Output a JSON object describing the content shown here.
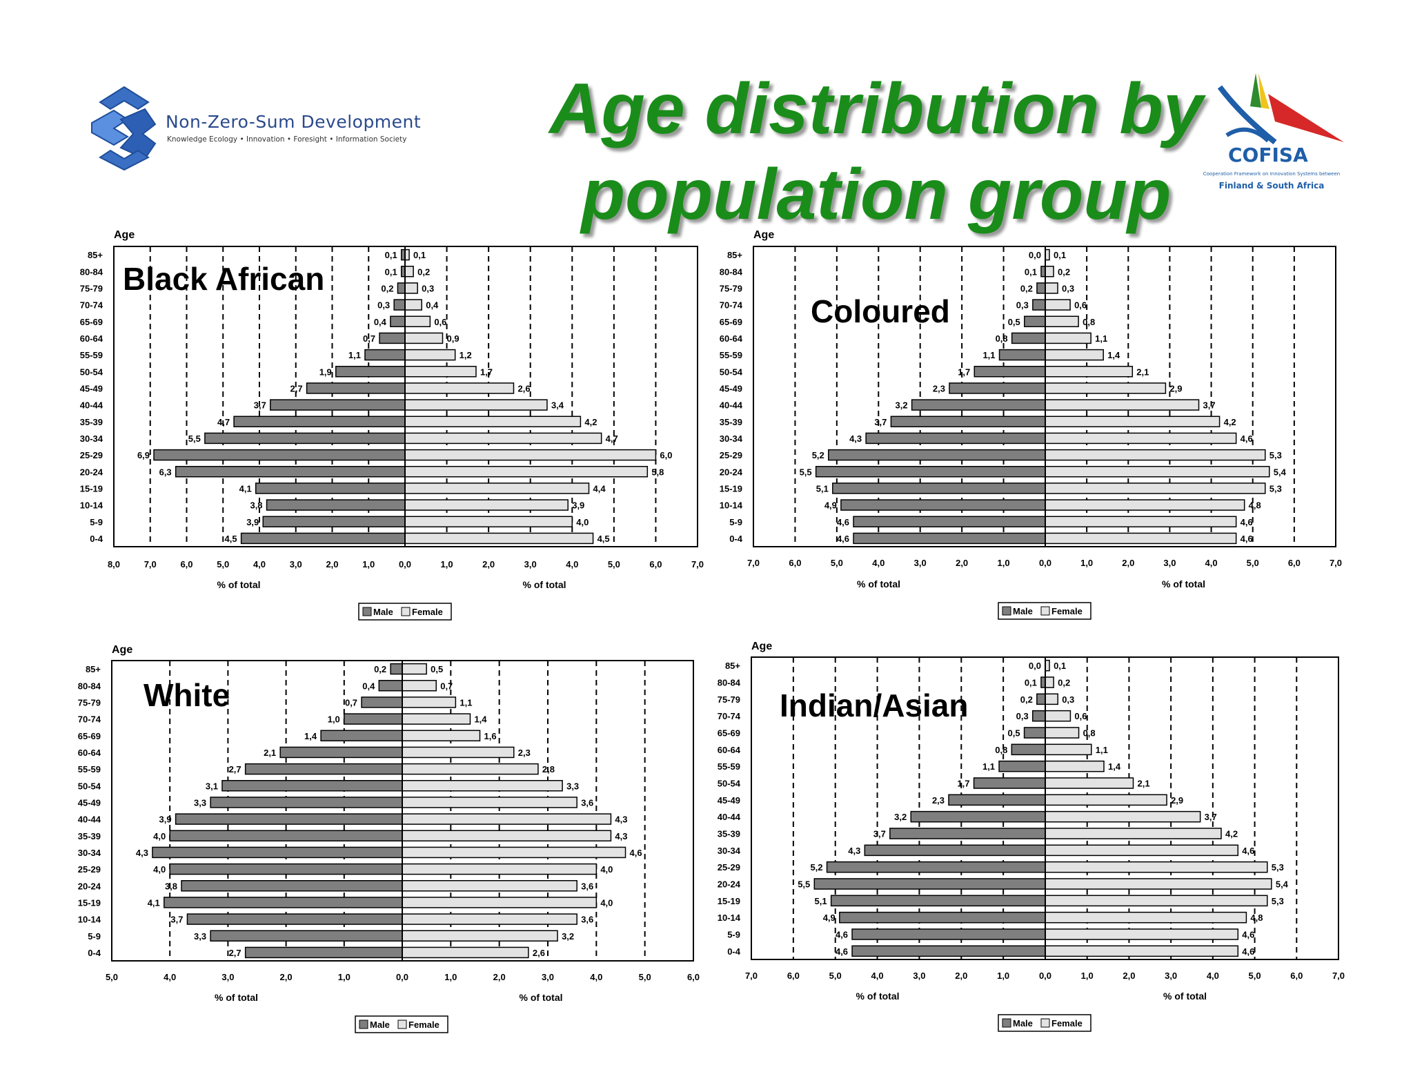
{
  "logos": {
    "nzs": {
      "name": "Non-Zero-Sum Development",
      "tagline": "Knowledge Ecology • Innovation • Foresight • Information Society"
    },
    "cofisa": {
      "name": "COFISA",
      "tagline": "Cooperation Framework on Innovation Systems between",
      "subtitle": "Finland & South Africa"
    }
  },
  "title": "Age distribution by population group",
  "colors": {
    "title": "#1a8c1a",
    "male": "#7f7f7f",
    "female": "#e3e3e3"
  },
  "chart_data": [
    {
      "type": "bar",
      "title": "Black African",
      "ylabel": "Age",
      "xlabel_left": "% of total",
      "xlabel_right": "% of total",
      "categories": [
        "85+",
        "80-84",
        "75-79",
        "70-74",
        "65-69",
        "60-64",
        "55-59",
        "50-54",
        "45-49",
        "40-44",
        "35-39",
        "30-34",
        "25-29",
        "20-24",
        "15-19",
        "10-14",
        "5-9",
        "0-4"
      ],
      "male_range": [
        8.0,
        0.0
      ],
      "female_range": [
        0.0,
        7.0
      ],
      "male_ticks": [
        "8,0",
        "7,0",
        "6,0",
        "5,0",
        "4,0",
        "3,0",
        "2,0",
        "1,0",
        "0,0"
      ],
      "female_ticks": [
        "0,0",
        "1,0",
        "2,0",
        "3,0",
        "4,0",
        "5,0",
        "6,0",
        "7,0"
      ],
      "series": [
        {
          "name": "Male",
          "values": [
            0.1,
            0.1,
            0.2,
            0.3,
            0.4,
            0.7,
            1.1,
            1.9,
            2.7,
            3.7,
            4.7,
            5.5,
            6.9,
            6.3,
            4.1,
            3.8,
            3.9,
            4.5
          ],
          "labels": [
            "0,1",
            "0,1",
            "0,2",
            "0,3",
            "0,4",
            "0,7",
            "1,1",
            "1,9",
            "2,7",
            "3,7",
            "4,7",
            "5,5",
            "6,9",
            "6,3",
            "4,1",
            "3,8",
            "3,9",
            "4,5"
          ]
        },
        {
          "name": "Female",
          "values": [
            0.1,
            0.2,
            0.3,
            0.4,
            0.6,
            0.9,
            1.2,
            1.7,
            2.6,
            3.4,
            4.2,
            4.7,
            6.0,
            5.8,
            4.4,
            3.9,
            4.0,
            4.5
          ],
          "labels": [
            "0,1",
            "0,2",
            "0,3",
            "0,4",
            "0,6",
            "0,9",
            "1,2",
            "1,7",
            "2,6",
            "3,4",
            "4,2",
            "4,7",
            "6,0",
            "5,8",
            "4,4",
            "3,9",
            "4,0",
            "4,5"
          ]
        }
      ],
      "legend": [
        "Male",
        "Female"
      ]
    },
    {
      "type": "bar",
      "title": "Coloured",
      "ylabel": "Age",
      "xlabel_left": "% of total",
      "xlabel_right": "% of total",
      "categories": [
        "85+",
        "80-84",
        "75-79",
        "70-74",
        "65-69",
        "60-64",
        "55-59",
        "50-54",
        "45-49",
        "40-44",
        "35-39",
        "30-34",
        "25-29",
        "20-24",
        "15-19",
        "10-14",
        "5-9",
        "0-4"
      ],
      "male_range": [
        7.0,
        0.0
      ],
      "female_range": [
        0.0,
        7.0
      ],
      "male_ticks": [
        "7,0",
        "6,0",
        "5,0",
        "4,0",
        "3,0",
        "2,0",
        "1,0",
        "0,0"
      ],
      "female_ticks": [
        "0,0",
        "1,0",
        "2,0",
        "3,0",
        "4,0",
        "5,0",
        "6,0",
        "7,0"
      ],
      "series": [
        {
          "name": "Male",
          "values": [
            0.0,
            0.1,
            0.2,
            0.3,
            0.5,
            0.8,
            1.1,
            1.7,
            2.3,
            3.2,
            3.7,
            4.3,
            5.2,
            5.5,
            5.1,
            4.9,
            4.6,
            4.6
          ],
          "labels": [
            "0,0",
            "0,1",
            "0,2",
            "0,3",
            "0,5",
            "0,8",
            "1,1",
            "1,7",
            "2,3",
            "3,2",
            "3,7",
            "4,3",
            "5,2",
            "5,5",
            "5,1",
            "4,9",
            "4,6",
            "4,6"
          ]
        },
        {
          "name": "Female",
          "values": [
            0.1,
            0.2,
            0.3,
            0.6,
            0.8,
            1.1,
            1.4,
            2.1,
            2.9,
            3.7,
            4.2,
            4.6,
            5.3,
            5.4,
            5.3,
            4.8,
            4.6,
            4.6
          ],
          "labels": [
            "0,1",
            "0,2",
            "0,3",
            "0,6",
            "0,8",
            "1,1",
            "1,4",
            "2,1",
            "2,9",
            "3,7",
            "4,2",
            "4,6",
            "5,3",
            "5,4",
            "5,3",
            "4,8",
            "4,6",
            "4,6"
          ]
        }
      ],
      "legend": [
        "Male",
        "Female"
      ]
    },
    {
      "type": "bar",
      "title": "White",
      "ylabel": "Age",
      "xlabel_left": "% of total",
      "xlabel_right": "% of total",
      "categories": [
        "85+",
        "80-84",
        "75-79",
        "70-74",
        "65-69",
        "60-64",
        "55-59",
        "50-54",
        "45-49",
        "40-44",
        "35-39",
        "30-34",
        "25-29",
        "20-24",
        "15-19",
        "10-14",
        "5-9",
        "0-4"
      ],
      "male_range": [
        5.0,
        0.0
      ],
      "female_range": [
        0.0,
        6.0
      ],
      "male_ticks": [
        "5,0",
        "4,0",
        "3,0",
        "2,0",
        "1,0",
        "0,0"
      ],
      "female_ticks": [
        "0,0",
        "1,0",
        "2,0",
        "3,0",
        "4,0",
        "5,0",
        "6,0"
      ],
      "series": [
        {
          "name": "Male",
          "values": [
            0.2,
            0.4,
            0.7,
            1.0,
            1.4,
            2.1,
            2.7,
            3.1,
            3.3,
            3.9,
            4.0,
            4.3,
            4.0,
            3.8,
            4.1,
            3.7,
            3.3,
            2.7
          ],
          "labels": [
            "0,2",
            "0,4",
            "0,7",
            "1,0",
            "1,4",
            "2,1",
            "2,7",
            "3,1",
            "3,3",
            "3,9",
            "4,0",
            "4,3",
            "4,0",
            "3,8",
            "4,1",
            "3,7",
            "3,3",
            "2,7"
          ]
        },
        {
          "name": "Female",
          "values": [
            0.5,
            0.7,
            1.1,
            1.4,
            1.6,
            2.3,
            2.8,
            3.3,
            3.6,
            4.3,
            4.3,
            4.6,
            4.0,
            3.6,
            4.0,
            3.6,
            3.2,
            2.6
          ],
          "labels": [
            "0,5",
            "0,7",
            "1,1",
            "1,4",
            "1,6",
            "2,3",
            "2,8",
            "3,3",
            "3,6",
            "4,3",
            "4,3",
            "4,6",
            "4,0",
            "3,6",
            "4,0",
            "3,6",
            "3,2",
            "2,6"
          ]
        }
      ],
      "legend": [
        "Male",
        "Female"
      ]
    },
    {
      "type": "bar",
      "title": "Indian/Asian",
      "ylabel": "Age",
      "xlabel_left": "% of total",
      "xlabel_right": "% of total",
      "categories": [
        "85+",
        "80-84",
        "75-79",
        "70-74",
        "65-69",
        "60-64",
        "55-59",
        "50-54",
        "45-49",
        "40-44",
        "35-39",
        "30-34",
        "25-29",
        "20-24",
        "15-19",
        "10-14",
        "5-9",
        "0-4"
      ],
      "male_range": [
        7.0,
        0.0
      ],
      "female_range": [
        0.0,
        7.0
      ],
      "male_ticks": [
        "7,0",
        "6,0",
        "5,0",
        "4,0",
        "3,0",
        "2,0",
        "1,0",
        "0,0"
      ],
      "female_ticks": [
        "0,0",
        "1,0",
        "2,0",
        "3,0",
        "4,0",
        "5,0",
        "6,0",
        "7,0"
      ],
      "series": [
        {
          "name": "Male",
          "values": [
            0.0,
            0.1,
            0.2,
            0.3,
            0.5,
            0.8,
            1.1,
            1.7,
            2.3,
            3.2,
            3.7,
            4.3,
            5.2,
            5.5,
            5.1,
            4.9,
            4.6,
            4.6
          ],
          "labels": [
            "0,0",
            "0,1",
            "0,2",
            "0,3",
            "0,5",
            "0,8",
            "1,1",
            "1,7",
            "2,3",
            "3,2",
            "3,7",
            "4,3",
            "5,2",
            "5,5",
            "5,1",
            "4,9",
            "4,6",
            "4,6"
          ]
        },
        {
          "name": "Female",
          "values": [
            0.1,
            0.2,
            0.3,
            0.6,
            0.8,
            1.1,
            1.4,
            2.1,
            2.9,
            3.7,
            4.2,
            4.6,
            5.3,
            5.4,
            5.3,
            4.8,
            4.6,
            4.6
          ],
          "labels": [
            "0,1",
            "0,2",
            "0,3",
            "0,6",
            "0,8",
            "1,1",
            "1,4",
            "2,1",
            "2,9",
            "3,7",
            "4,2",
            "4,6",
            "5,3",
            "5,4",
            "5,3",
            "4,8",
            "4,6",
            "4,6"
          ]
        }
      ],
      "legend": [
        "Male",
        "Female"
      ]
    }
  ]
}
